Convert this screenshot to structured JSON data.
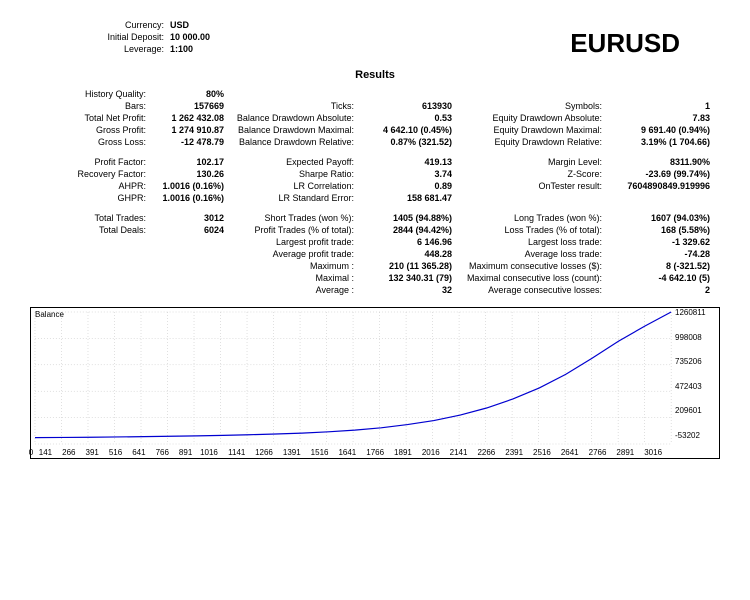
{
  "account": {
    "currency_label": "Currency:",
    "currency_value": "USD",
    "deposit_label": "Initial Deposit:",
    "deposit_value": "10 000.00",
    "leverage_label": "Leverage:",
    "leverage_value": "1:100"
  },
  "symbol": "EURUSD",
  "results_title": "Results",
  "rows": {
    "history_quality": {
      "l": "History Quality:",
      "v": "80%"
    },
    "bars": {
      "l": "Bars:",
      "v": "157669"
    },
    "ticks": {
      "l": "Ticks:",
      "v": "613930"
    },
    "symbols": {
      "l": "Symbols:",
      "v": "1"
    },
    "total_net_profit": {
      "l": "Total Net Profit:",
      "v": "1 262 432.08"
    },
    "balance_dd_abs": {
      "l": "Balance Drawdown Absolute:",
      "v": "0.53"
    },
    "equity_dd_abs": {
      "l": "Equity Drawdown Absolute:",
      "v": "7.83"
    },
    "gross_profit": {
      "l": "Gross Profit:",
      "v": "1 274 910.87"
    },
    "balance_dd_max": {
      "l": "Balance Drawdown Maximal:",
      "v": "4 642.10 (0.45%)"
    },
    "equity_dd_max": {
      "l": "Equity Drawdown Maximal:",
      "v": "9 691.40 (0.94%)"
    },
    "gross_loss": {
      "l": "Gross Loss:",
      "v": "-12 478.79"
    },
    "balance_dd_rel": {
      "l": "Balance Drawdown Relative:",
      "v": "0.87% (321.52)"
    },
    "equity_dd_rel": {
      "l": "Equity Drawdown Relative:",
      "v": "3.19% (1 704.66)"
    },
    "profit_factor": {
      "l": "Profit Factor:",
      "v": "102.17"
    },
    "expected_payoff": {
      "l": "Expected Payoff:",
      "v": "419.13"
    },
    "margin_level": {
      "l": "Margin Level:",
      "v": "8311.90%"
    },
    "recovery_factor": {
      "l": "Recovery Factor:",
      "v": "130.26"
    },
    "sharpe_ratio": {
      "l": "Sharpe Ratio:",
      "v": "3.74"
    },
    "zscore": {
      "l": "Z-Score:",
      "v": "-23.69 (99.74%)"
    },
    "ahpr": {
      "l": "AHPR:",
      "v": "1.0016 (0.16%)"
    },
    "lr_corr": {
      "l": "LR Correlation:",
      "v": "0.89"
    },
    "ontester": {
      "l": "OnTester result:",
      "v": "7604890849.919996"
    },
    "ghpr": {
      "l": "GHPR:",
      "v": "1.0016 (0.16%)"
    },
    "lr_stderr": {
      "l": "LR Standard Error:",
      "v": "158 681.47"
    },
    "total_trades": {
      "l": "Total Trades:",
      "v": "3012"
    },
    "short_trades": {
      "l": "Short Trades (won %):",
      "v": "1405 (94.88%)"
    },
    "long_trades": {
      "l": "Long Trades (won %):",
      "v": "1607 (94.03%)"
    },
    "total_deals": {
      "l": "Total Deals:",
      "v": "6024"
    },
    "profit_trades": {
      "l": "Profit Trades (% of total):",
      "v": "2844 (94.42%)"
    },
    "loss_trades": {
      "l": "Loss Trades (% of total):",
      "v": "168 (5.58%)"
    },
    "largest_profit": {
      "l": "Largest profit trade:",
      "v": "6 146.96"
    },
    "largest_loss": {
      "l": "Largest loss trade:",
      "v": "-1 329.62"
    },
    "avg_profit": {
      "l": "Average profit trade:",
      "v": "448.28"
    },
    "avg_loss": {
      "l": "Average loss trade:",
      "v": "-74.28"
    },
    "max_wins": {
      "l": "Maximum :",
      "v": "210 (11 365.28)"
    },
    "max_cons_loss_money": {
      "l": "Maximum consecutive losses ($):",
      "v": "8 (-321.52)"
    },
    "max_win_money": {
      "l": "Maximal :",
      "v": "132 340.31 (79)"
    },
    "max_cons_loss_count": {
      "l": "Maximal consecutive loss (count):",
      "v": "-4 642.10 (5)"
    },
    "avg_cons_wins": {
      "l": "Average :",
      "v": "32"
    },
    "avg_cons_losses": {
      "l": "Average consecutive losses:",
      "v": "2"
    }
  },
  "chart": {
    "label": "Balance",
    "line_color": "#0000d0",
    "grid_color": "#c0c0c0",
    "background": "#ffffff",
    "x_ticks": [
      "0",
      "141",
      "266",
      "391",
      "516",
      "641",
      "766",
      "891",
      "1016",
      "1141",
      "1266",
      "1391",
      "1516",
      "1641",
      "1766",
      "1891",
      "2016",
      "2141",
      "2266",
      "2391",
      "2516",
      "2641",
      "2766",
      "2891",
      "3016"
    ],
    "y_ticks": [
      "1260811",
      "998008",
      "735206",
      "472403",
      "209601",
      "-53202"
    ],
    "xlim": [
      0,
      3016
    ],
    "ylim": [
      -53202,
      1260811
    ],
    "points": [
      [
        0,
        10000
      ],
      [
        141,
        12000
      ],
      [
        266,
        14000
      ],
      [
        391,
        17000
      ],
      [
        516,
        20000
      ],
      [
        641,
        24000
      ],
      [
        766,
        28000
      ],
      [
        891,
        33000
      ],
      [
        1016,
        39000
      ],
      [
        1141,
        46000
      ],
      [
        1266,
        55000
      ],
      [
        1391,
        68000
      ],
      [
        1516,
        85000
      ],
      [
        1641,
        108000
      ],
      [
        1766,
        140000
      ],
      [
        1891,
        180000
      ],
      [
        2016,
        235000
      ],
      [
        2141,
        305000
      ],
      [
        2266,
        395000
      ],
      [
        2391,
        505000
      ],
      [
        2516,
        640000
      ],
      [
        2641,
        800000
      ],
      [
        2766,
        970000
      ],
      [
        2891,
        1120000
      ],
      [
        3016,
        1260811
      ]
    ]
  }
}
